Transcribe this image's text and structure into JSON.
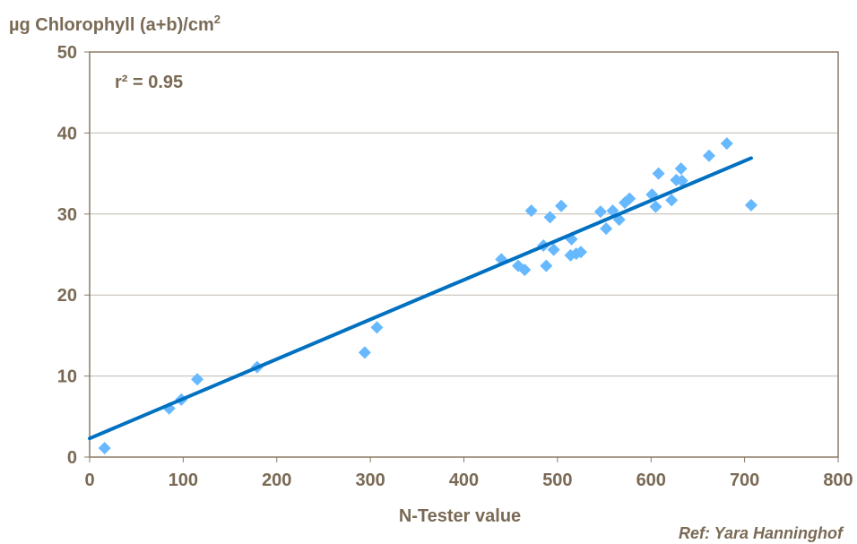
{
  "chart_data": {
    "type": "scatter",
    "title": "",
    "ylabel": "µg Chlorophyll (a+b)/cm",
    "ylabel_superscript": "2",
    "xlabel": "N-Tester value",
    "annotation": "r² = 0.95",
    "reference": "Ref: Yara Hanninghof",
    "xlim": [
      0,
      800
    ],
    "ylim": [
      0,
      50
    ],
    "xticks": [
      "0",
      "100",
      "200",
      "300",
      "400",
      "500",
      "600",
      "700",
      "800"
    ],
    "yticks": [
      "0",
      "10",
      "20",
      "30",
      "40",
      "50"
    ],
    "grid": "horizontal",
    "colors": {
      "points": "#66b8ff",
      "trendline": "#0070c0",
      "text": "#7a6a55",
      "axis": "#8a7a66",
      "grid": "#bfb8b0"
    },
    "points": [
      [
        16,
        1.1
      ],
      [
        85,
        6.0
      ],
      [
        98,
        7.1
      ],
      [
        115,
        9.6
      ],
      [
        179,
        11.1
      ],
      [
        294,
        12.9
      ],
      [
        307,
        16.0
      ],
      [
        440,
        24.4
      ],
      [
        458,
        23.6
      ],
      [
        465,
        23.1
      ],
      [
        472,
        30.4
      ],
      [
        485,
        26.1
      ],
      [
        488,
        23.6
      ],
      [
        492,
        29.6
      ],
      [
        496,
        25.6
      ],
      [
        504,
        31.0
      ],
      [
        514,
        24.9
      ],
      [
        515,
        26.9
      ],
      [
        520,
        25.1
      ],
      [
        525,
        25.3
      ],
      [
        546,
        30.3
      ],
      [
        552,
        28.2
      ],
      [
        559,
        30.4
      ],
      [
        566,
        29.3
      ],
      [
        572,
        31.4
      ],
      [
        577,
        31.9
      ],
      [
        601,
        32.4
      ],
      [
        605,
        30.9
      ],
      [
        608,
        35.0
      ],
      [
        622,
        31.7
      ],
      [
        627,
        34.2
      ],
      [
        632,
        35.6
      ],
      [
        633,
        34.1
      ],
      [
        662,
        37.2
      ],
      [
        681,
        38.7
      ],
      [
        707,
        31.1
      ]
    ],
    "trendline": {
      "x": [
        0,
        707
      ],
      "y": [
        2.3,
        36.9
      ]
    }
  }
}
